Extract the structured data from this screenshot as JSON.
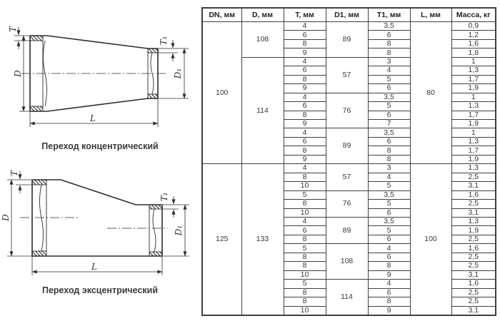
{
  "diagrams": {
    "concentric": {
      "caption": "Переход концентрический",
      "labels": {
        "t": "T",
        "d": "D",
        "t1": "T₁",
        "d1": "D₁",
        "l": "L"
      }
    },
    "eccentric": {
      "caption": "Переход эксцентрический",
      "labels": {
        "t": "T",
        "d": "D",
        "t1": "T₁",
        "d1": "D₁",
        "l": "L"
      }
    }
  },
  "table": {
    "headers": [
      "DN, мм",
      "D, мм",
      "T, мм",
      "D1, мм",
      "T1, мм",
      "L, мм",
      "Масса, кг"
    ],
    "groups": [
      {
        "dn": "100",
        "l": "80",
        "d_groups": [
          {
            "d": "108",
            "d1_groups": [
              {
                "d1": "89",
                "rows": [
                  {
                    "t": "4",
                    "t1": "3,5",
                    "m": "0,9"
                  },
                  {
                    "t": "6",
                    "t1": "6",
                    "m": "1,2"
                  },
                  {
                    "t": "8",
                    "t1": "8",
                    "m": "1,6"
                  },
                  {
                    "t": "9",
                    "t1": "8",
                    "m": "1,8"
                  }
                ]
              }
            ]
          },
          {
            "d": "114",
            "d1_groups": [
              {
                "d1": "57",
                "rows": [
                  {
                    "t": "4",
                    "t1": "3",
                    "m": "1"
                  },
                  {
                    "t": "6",
                    "t1": "4",
                    "m": "1,3"
                  },
                  {
                    "t": "8",
                    "t1": "5",
                    "m": "1,7"
                  },
                  {
                    "t": "9",
                    "t1": "6",
                    "m": "1,9"
                  }
                ]
              },
              {
                "d1": "76",
                "rows": [
                  {
                    "t": "4",
                    "t1": "3,5",
                    "m": "1"
                  },
                  {
                    "t": "6",
                    "t1": "5",
                    "m": "1,3"
                  },
                  {
                    "t": "8",
                    "t1": "6",
                    "m": "1,7"
                  },
                  {
                    "t": "9",
                    "t1": "7",
                    "m": "1,9"
                  }
                ]
              },
              {
                "d1": "89",
                "rows": [
                  {
                    "t": "4",
                    "t1": "3,5",
                    "m": "1"
                  },
                  {
                    "t": "6",
                    "t1": "6",
                    "m": "1,3"
                  },
                  {
                    "t": "8",
                    "t1": "8",
                    "m": "1,7"
                  },
                  {
                    "t": "9",
                    "t1": "8",
                    "m": "1,9"
                  }
                ]
              }
            ]
          }
        ]
      },
      {
        "dn": "125",
        "l": "100",
        "d_groups": [
          {
            "d": "133",
            "d1_groups": [
              {
                "d1": "57",
                "rows": [
                  {
                    "t": "4",
                    "t1": "3",
                    "m": "1,3"
                  },
                  {
                    "t": "8",
                    "t1": "4",
                    "m": "2,5"
                  },
                  {
                    "t": "10",
                    "t1": "5",
                    "m": "3,1"
                  }
                ]
              },
              {
                "d1": "76",
                "rows": [
                  {
                    "t": "5",
                    "t1": "3,5",
                    "m": "1,6"
                  },
                  {
                    "t": "8",
                    "t1": "5",
                    "m": "2,5"
                  },
                  {
                    "t": "10",
                    "t1": "6",
                    "m": "3,1"
                  }
                ]
              },
              {
                "d1": "89",
                "rows": [
                  {
                    "t": "4",
                    "t1": "3,5",
                    "m": "1,3"
                  },
                  {
                    "t": "6",
                    "t1": "5",
                    "m": "1,9"
                  },
                  {
                    "t": "8",
                    "t1": "6",
                    "m": "2,5"
                  }
                ]
              },
              {
                "d1": "108",
                "rows": [
                  {
                    "t": "5",
                    "t1": "4",
                    "m": "1,6"
                  },
                  {
                    "t": "8",
                    "t1": "6",
                    "m": "2,5"
                  },
                  {
                    "t": "8",
                    "t1": "8",
                    "m": "2,5"
                  },
                  {
                    "t": "10",
                    "t1": "9",
                    "m": "3,1"
                  }
                ]
              },
              {
                "d1": "114",
                "rows": [
                  {
                    "t": "5",
                    "t1": "4",
                    "m": "1,6"
                  },
                  {
                    "t": "8",
                    "t1": "6",
                    "m": "2,5"
                  },
                  {
                    "t": "8",
                    "t1": "8",
                    "m": "2,5"
                  },
                  {
                    "t": "10",
                    "t1": "9",
                    "m": "3,1"
                  }
                ]
              }
            ]
          }
        ]
      }
    ]
  }
}
